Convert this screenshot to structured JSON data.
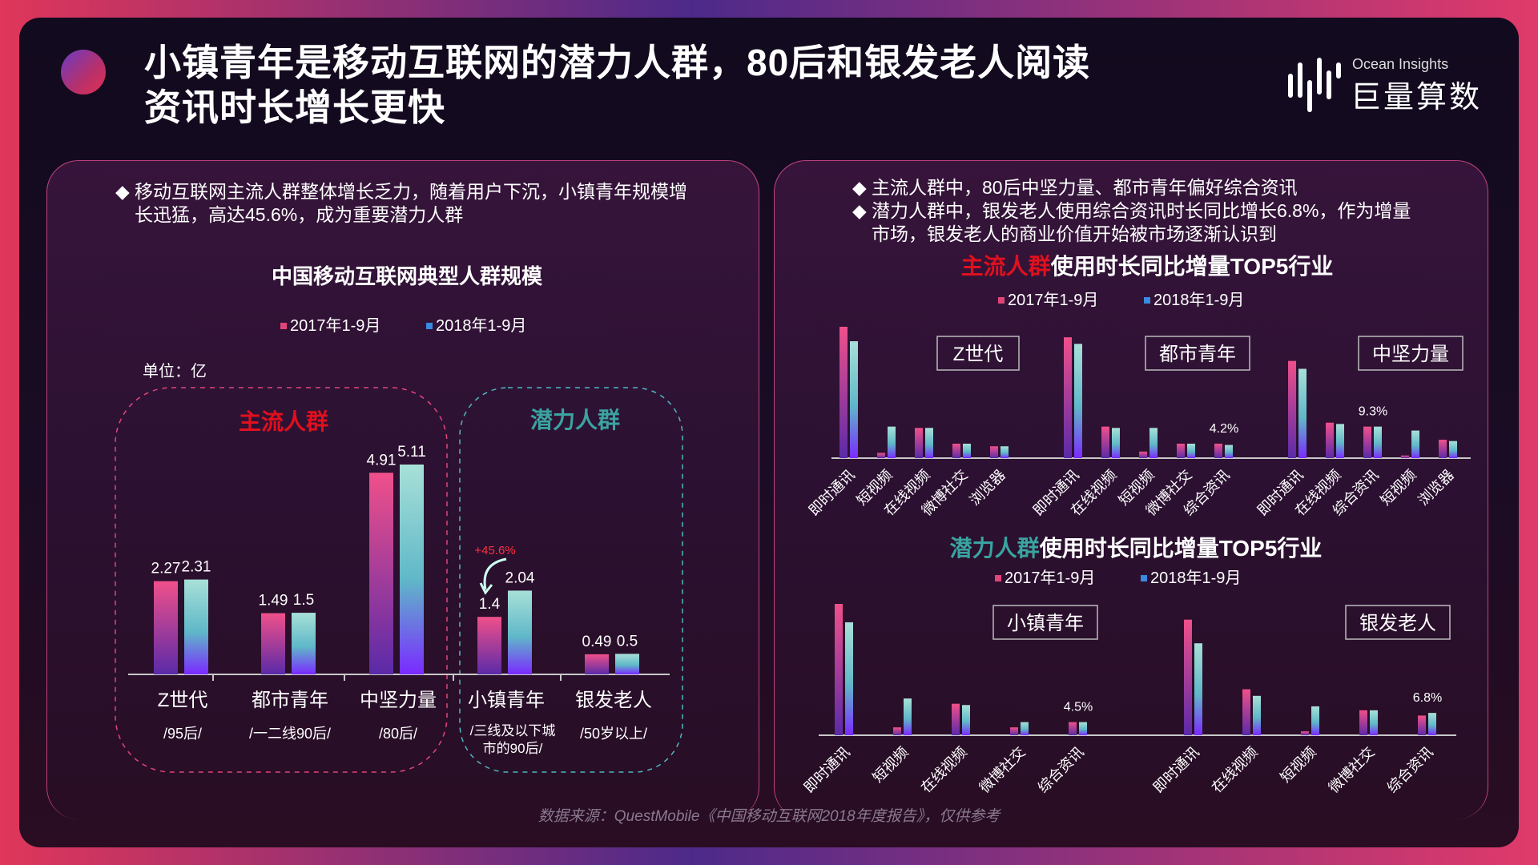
{
  "header": {
    "title_line1": "小镇青年是移动互联网的潜力人群，80后和银发老人阅读",
    "title_line2": "资讯时长增长更快"
  },
  "logo": {
    "en": "Ocean Insights",
    "cn": "巨量算数"
  },
  "left": {
    "bullet": [
      "移动互联网主流人群整体增长乏力，随着用户下沉，小镇青年规模增",
      "长迅猛，高达45.6%，成为重要潜力人群"
    ],
    "group_main": "主流人群",
    "group_potential": "潜力人群",
    "growth_label": "+45.6%"
  },
  "right": {
    "bullets": [
      [
        "主流人群中，80后中坚力量、都市青年偏好综合资讯"
      ],
      [
        "潜力人群中，银发老人使用综合资讯时长同比增长6.8%，作为增量",
        "市场，银发老人的商业价值开始被市场逐渐认识到"
      ]
    ],
    "title1_hl": "主流人群",
    "title1_rest": "使用时长同比增量TOP5行业",
    "title2_hl": "潜力人群",
    "title2_rest": "使用时长同比增量TOP5行业"
  },
  "source": "数据来源：QuestMobile《中国移动互联网2018年度报告》，仅供参考",
  "colors": {
    "s2017": "#e0457a",
    "s2018": "#4fc3c3",
    "main_red": "#e0101e",
    "potential_teal": "#3aa3a0"
  },
  "chart_data": [
    {
      "type": "bar",
      "title": "中国移动互联网典型人群规模",
      "unit": "单位：亿",
      "categories": [
        "Z世代",
        "都市青年",
        "中坚力量",
        "小镇青年",
        "银发老人"
      ],
      "subcategories": [
        "/95后/",
        "/一二线90后/",
        "/80后/",
        "/三线及以下城市的90后/",
        "/50岁以上/"
      ],
      "series": [
        {
          "name": "2017年1-9月",
          "values": [
            2.27,
            1.49,
            4.91,
            1.4,
            0.49
          ]
        },
        {
          "name": "2018年1-9月",
          "values": [
            2.31,
            1.5,
            5.11,
            2.04,
            0.5
          ]
        }
      ],
      "value_labels": [
        [
          "2.27",
          "2.31"
        ],
        [
          "1.49",
          "1.5"
        ],
        [
          "4.91",
          "5.11"
        ],
        [
          "1.4",
          "2.04"
        ],
        [
          "0.49",
          "0.5"
        ]
      ],
      "ylim": [
        0,
        5.5
      ]
    },
    {
      "type": "bar",
      "title": "主流人群使用时长同比增量TOP5行业",
      "series_names": [
        "2017年1-9月",
        "2018年1-9月"
      ],
      "groups": [
        {
          "name": "Z世代",
          "categories": [
            "即时通讯",
            "短视频",
            "在线视频",
            "微博社交",
            "浏览器"
          ],
          "s2017": [
            100,
            4,
            23,
            11,
            9
          ],
          "s2018": [
            89,
            24,
            23,
            11,
            9
          ],
          "labels": [
            "",
            "",
            "",
            "",
            ""
          ]
        },
        {
          "name": "都市青年",
          "categories": [
            "即时通讯",
            "在线视频",
            "短视频",
            "微博社交",
            "综合资讯"
          ],
          "s2017": [
            92,
            24,
            5,
            11,
            11
          ],
          "s2018": [
            87,
            23,
            23,
            11,
            10
          ],
          "labels": [
            "",
            "",
            "",
            "",
            "4.2%"
          ]
        },
        {
          "name": "中坚力量",
          "categories": [
            "即时通讯",
            "在线视频",
            "综合资讯",
            "短视频",
            "浏览器"
          ],
          "s2017": [
            74,
            27,
            24,
            2,
            14
          ],
          "s2018": [
            68,
            26,
            24,
            21,
            13
          ],
          "labels": [
            "",
            "",
            "9.3%",
            "",
            ""
          ]
        }
      ]
    },
    {
      "type": "bar",
      "title": "潜力人群使用时长同比增量TOP5行业",
      "series_names": [
        "2017年1-9月",
        "2018年1-9月"
      ],
      "groups": [
        {
          "name": "小镇青年",
          "categories": [
            "即时通讯",
            "短视频",
            "在线视频",
            "微博社交",
            "综合资讯"
          ],
          "s2017": [
            100,
            6,
            24,
            6,
            10
          ],
          "s2018": [
            86,
            28,
            23,
            10,
            10
          ],
          "labels": [
            "",
            "",
            "",
            "",
            "4.5%"
          ]
        },
        {
          "name": "银发老人",
          "categories": [
            "即时通讯",
            "在线视频",
            "短视频",
            "微博社交",
            "综合资讯"
          ],
          "s2017": [
            88,
            35,
            3,
            19,
            15
          ],
          "s2018": [
            70,
            30,
            22,
            19,
            17
          ],
          "labels": [
            "",
            "",
            "",
            "",
            "6.8%"
          ]
        }
      ]
    }
  ]
}
